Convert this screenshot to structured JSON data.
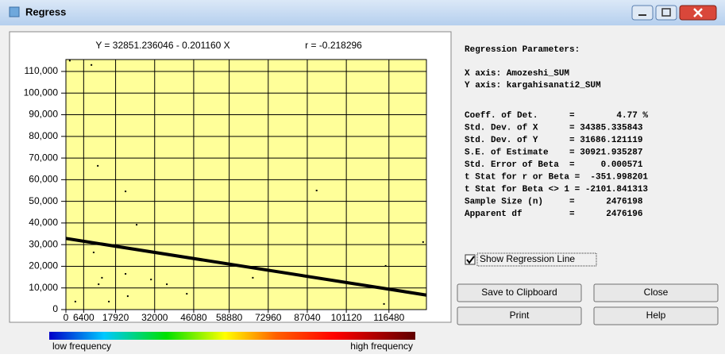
{
  "window": {
    "title": "Regress"
  },
  "chart_data": {
    "type": "scatter",
    "equation": "Y = 32851.236046 - 0.201160 X",
    "correlation": "r = -0.218296",
    "line": {
      "intercept": 32851.236046,
      "slope": -0.20116
    },
    "x": [
      1400,
      9200,
      11500,
      21500,
      25500,
      90400,
      10000,
      11800,
      13000,
      21500,
      30700,
      36400,
      15500,
      22300,
      3400,
      67400,
      115300,
      43600,
      114700,
      128800
    ],
    "values": [
      115000,
      113000,
      66400,
      54600,
      39200,
      55000,
      26400,
      11700,
      14700,
      16500,
      13900,
      11700,
      3700,
      6200,
      3700,
      14700,
      20200,
      7300,
      2600,
      31200
    ],
    "color": "#000000",
    "line_color": "#000000",
    "plot_background": "#ffff99",
    "xlim": [
      0,
      130000
    ],
    "ylim": [
      0,
      115500
    ],
    "xticks": [
      0,
      6400,
      17920,
      32000,
      46080,
      58880,
      72960,
      87040,
      101120,
      116480
    ],
    "yticks": [
      0,
      {
        "value": 10000,
        "label": "10,000"
      },
      {
        "value": 20000,
        "label": "20,000"
      },
      {
        "value": 30000,
        "label": "30,000"
      },
      {
        "value": 40000,
        "label": "40,000"
      },
      {
        "value": 50000,
        "label": "50,000"
      },
      {
        "value": 60000,
        "label": "60,000"
      },
      {
        "value": 70000,
        "label": "70,000"
      },
      {
        "value": 80000,
        "label": "80,000"
      },
      {
        "value": 90000,
        "label": "90,000"
      },
      {
        "value": 100000,
        "label": "100,000"
      },
      {
        "value": 110000,
        "label": "110,000"
      }
    ],
    "grid": true,
    "colorbar": {
      "low": "low frequency",
      "high": "high frequency"
    }
  },
  "parameters": {
    "heading": "Regression Parameters:",
    "axes": [
      "X axis: Amozeshi_SUM",
      "Y axis: kargahisanati2_SUM"
    ],
    "lines": [
      "Coeff. of Det.      =        4.77 %",
      "Std. Dev. of X      = 34385.335843",
      "Std. Dev. of Y      = 31686.121119",
      "S.E. of Estimate    = 30921.935287",
      "Std. Error of Beta  =     0.000571",
      "t Stat for r or Beta =  -351.998201",
      "t Stat for Beta <> 1 = -2101.841313",
      "Sample Size (n)     =      2476198",
      "Apparent df         =      2476196"
    ]
  },
  "checkbox": {
    "label": "Show Regression Line",
    "checked": true
  },
  "buttons": [
    "Save to Clipboard",
    "Close",
    "Print",
    "Help"
  ]
}
